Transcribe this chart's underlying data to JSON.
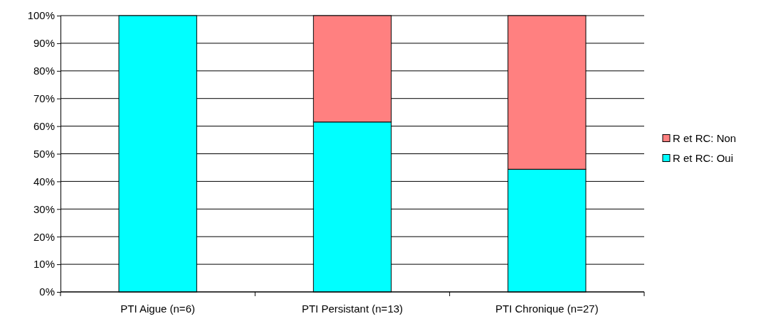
{
  "chart_data": {
    "type": "bar",
    "stacked": true,
    "categories": [
      "PTI Aigue (n=6)",
      "PTI Persistant (n=13)",
      "PTI Chronique (n=27)"
    ],
    "series": [
      {
        "name": "R et RC: Oui",
        "color": "#00ffff",
        "values": [
          100,
          61.5,
          44.4
        ]
      },
      {
        "name": "R et RC: Non",
        "color": "#ff8080",
        "values": [
          0,
          38.5,
          55.6
        ]
      }
    ],
    "ylim": [
      0,
      100
    ],
    "yticks": [
      {
        "value": 0,
        "label": "0%"
      },
      {
        "value": 10,
        "label": "10%"
      },
      {
        "value": 20,
        "label": "20%"
      },
      {
        "value": 30,
        "label": "30%"
      },
      {
        "value": 40,
        "label": "40%"
      },
      {
        "value": 50,
        "label": "50%"
      },
      {
        "value": 60,
        "label": "60%"
      },
      {
        "value": 70,
        "label": "70%"
      },
      {
        "value": 80,
        "label": "80%"
      },
      {
        "value": 90,
        "label": "90%"
      },
      {
        "value": 100,
        "label": "100%"
      }
    ],
    "grid": "y",
    "legend": "right"
  }
}
